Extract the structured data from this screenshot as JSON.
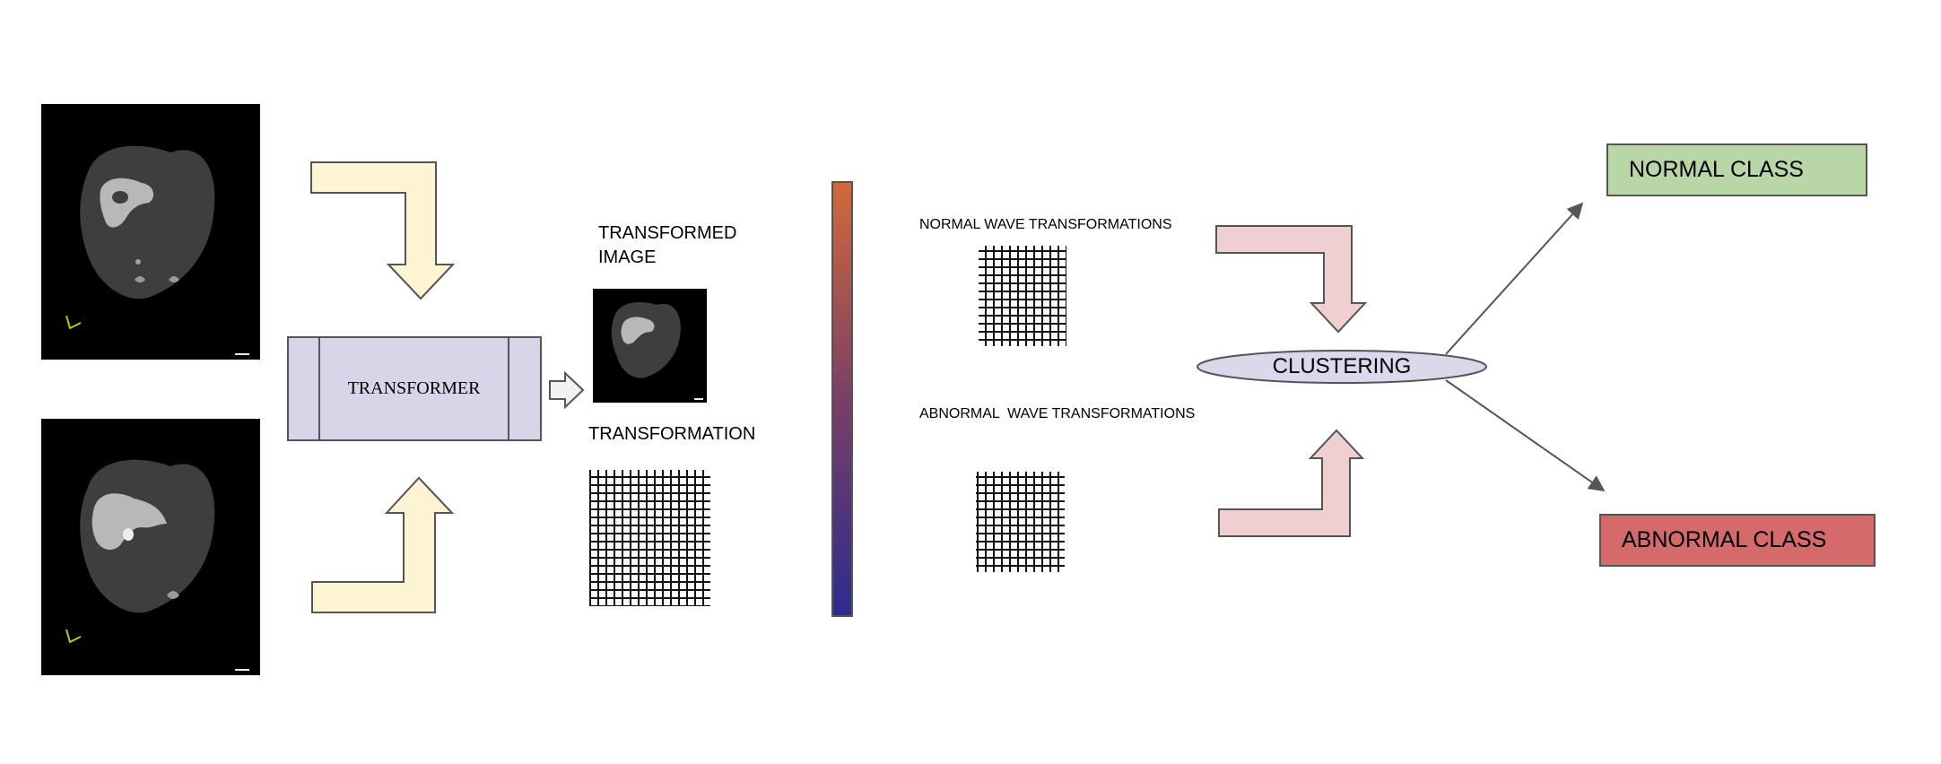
{
  "diagram": {
    "transformer_label": "TRANSFORMER",
    "transformed_image_label_line1": "TRANSFORMED",
    "transformed_image_label_line2": "IMAGE",
    "transformation_label": "TRANSFORMATION",
    "normal_wave_label": "NORMAL WAVE TRANSFORMATIONS",
    "abnormal_wave_label": "ABNORMAL  WAVE TRANSFORMATIONS",
    "clustering_label": "CLUSTERING",
    "normal_class_label": "NORMAL CLASS",
    "abnormal_class_label": "ABNORMAL CLASS"
  },
  "colors": {
    "arrow_yellow": "#fdf4d4",
    "transformer_fill": "#d9d4e8",
    "arrow_pink": "#efcfd0",
    "clustering_fill": "#dcd8ec",
    "normal_class_fill": "#b8d6a6",
    "abnormal_class_fill": "#d46a6a",
    "gradient_top": "#d2693a",
    "gradient_bottom": "#2c2c8c"
  }
}
